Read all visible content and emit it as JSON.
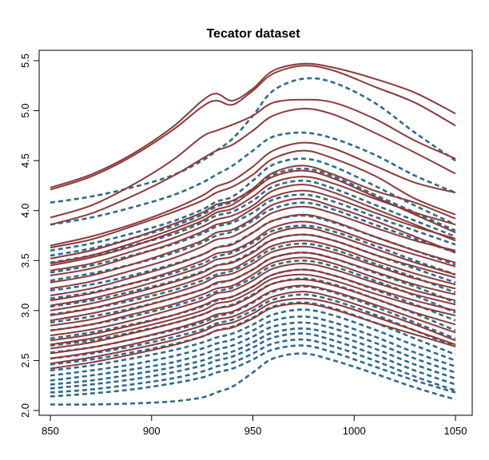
{
  "chart_data": {
    "type": "line",
    "title": "Tecator dataset",
    "xlabel": "",
    "ylabel": "",
    "xlim": [
      850,
      1050
    ],
    "ylim": [
      2.0,
      5.5
    ],
    "x_ticks": [
      850,
      900,
      950,
      1000,
      1050
    ],
    "y_ticks": [
      2.0,
      2.5,
      3.0,
      3.5,
      4.0,
      4.5,
      5.0,
      5.5
    ],
    "x_tick_labels": [
      "850",
      "900",
      "950",
      "1000",
      "1050"
    ],
    "y_tick_labels": [
      "2.0",
      "2.5",
      "3.0",
      "3.5",
      "4.0",
      "4.5",
      "5.0",
      "5.5"
    ],
    "grid": false,
    "colors": {
      "solid": "#8b3a3a",
      "dashed": "#2e6b8e"
    },
    "x": [
      850,
      870,
      890,
      910,
      925,
      932,
      940,
      950,
      960,
      975,
      990,
      1010,
      1030,
      1050
    ],
    "series": [
      {
        "group": "solid",
        "values": [
          4.23,
          4.36,
          4.56,
          4.83,
          5.1,
          5.17,
          5.1,
          5.22,
          5.4,
          5.47,
          5.43,
          5.32,
          5.18,
          4.97
        ]
      },
      {
        "group": "solid",
        "values": [
          4.21,
          4.34,
          4.54,
          4.8,
          5.04,
          5.1,
          5.06,
          5.2,
          5.37,
          5.45,
          5.4,
          5.24,
          5.08,
          4.85
        ]
      },
      {
        "group": "solid",
        "values": [
          3.93,
          4.05,
          4.25,
          4.5,
          4.74,
          4.8,
          4.86,
          4.95,
          5.08,
          5.11,
          5.08,
          4.92,
          4.7,
          4.52
        ]
      },
      {
        "group": "solid",
        "values": [
          3.86,
          3.97,
          4.14,
          4.34,
          4.52,
          4.6,
          4.66,
          4.8,
          4.95,
          5.02,
          4.96,
          4.78,
          4.58,
          4.37
        ]
      },
      {
        "group": "solid",
        "values": [
          3.65,
          3.74,
          3.86,
          4.01,
          4.15,
          4.24,
          4.3,
          4.44,
          4.6,
          4.68,
          4.62,
          4.45,
          4.28,
          4.18
        ]
      },
      {
        "group": "solid",
        "values": [
          3.63,
          3.71,
          3.84,
          3.98,
          4.1,
          4.18,
          4.24,
          4.36,
          4.52,
          4.6,
          4.52,
          4.35,
          4.12,
          3.96
        ]
      },
      {
        "group": "solid",
        "values": [
          3.52,
          3.6,
          3.72,
          3.86,
          3.98,
          4.06,
          4.1,
          4.22,
          4.38,
          4.45,
          4.36,
          4.2,
          4.08,
          3.92
        ]
      },
      {
        "group": "solid",
        "values": [
          3.47,
          3.55,
          3.67,
          3.81,
          3.93,
          4.01,
          4.06,
          4.2,
          4.34,
          4.4,
          4.32,
          4.14,
          3.96,
          3.78
        ]
      },
      {
        "group": "solid",
        "values": [
          3.45,
          3.53,
          3.64,
          3.78,
          3.9,
          3.98,
          4.02,
          4.14,
          4.28,
          4.34,
          4.27,
          4.12,
          3.98,
          3.86
        ]
      },
      {
        "group": "solid",
        "values": [
          3.4,
          3.47,
          3.59,
          3.72,
          3.84,
          3.91,
          3.95,
          4.05,
          4.2,
          4.26,
          4.18,
          4.02,
          3.86,
          3.7
        ]
      },
      {
        "group": "solid",
        "values": [
          3.35,
          3.42,
          3.54,
          3.67,
          3.79,
          3.86,
          3.9,
          4.02,
          4.14,
          4.2,
          4.13,
          3.98,
          3.84,
          3.72
        ]
      },
      {
        "group": "solid",
        "values": [
          3.28,
          3.35,
          3.46,
          3.59,
          3.7,
          3.78,
          3.81,
          3.92,
          4.06,
          4.12,
          4.04,
          3.9,
          3.74,
          3.58
        ]
      },
      {
        "group": "solid",
        "values": [
          3.22,
          3.29,
          3.4,
          3.52,
          3.64,
          3.71,
          3.74,
          3.85,
          3.98,
          4.04,
          3.97,
          3.83,
          3.7,
          3.6
        ]
      },
      {
        "group": "solid",
        "values": [
          3.15,
          3.22,
          3.33,
          3.45,
          3.56,
          3.63,
          3.66,
          3.78,
          3.9,
          3.96,
          3.89,
          3.74,
          3.6,
          3.48
        ]
      },
      {
        "group": "solid",
        "values": [
          3.1,
          3.17,
          3.27,
          3.39,
          3.5,
          3.57,
          3.6,
          3.7,
          3.83,
          3.89,
          3.82,
          3.68,
          3.56,
          3.44
        ]
      },
      {
        "group": "solid",
        "values": [
          3.05,
          3.12,
          3.22,
          3.34,
          3.44,
          3.51,
          3.54,
          3.64,
          3.77,
          3.83,
          3.76,
          3.62,
          3.48,
          3.36
        ]
      },
      {
        "group": "solid",
        "values": [
          3.0,
          3.07,
          3.17,
          3.28,
          3.38,
          3.45,
          3.48,
          3.58,
          3.71,
          3.76,
          3.7,
          3.56,
          3.44,
          3.33
        ]
      },
      {
        "group": "solid",
        "values": [
          2.95,
          3.02,
          3.12,
          3.23,
          3.33,
          3.4,
          3.42,
          3.53,
          3.65,
          3.7,
          3.64,
          3.5,
          3.37,
          3.26
        ]
      },
      {
        "group": "solid",
        "values": [
          2.9,
          2.97,
          3.06,
          3.17,
          3.27,
          3.34,
          3.37,
          3.47,
          3.59,
          3.64,
          3.58,
          3.45,
          3.32,
          3.22
        ]
      },
      {
        "group": "solid",
        "values": [
          2.85,
          2.91,
          3.01,
          3.12,
          3.21,
          3.28,
          3.31,
          3.41,
          3.53,
          3.58,
          3.52,
          3.39,
          3.26,
          3.16
        ]
      },
      {
        "group": "solid",
        "values": [
          2.8,
          2.86,
          2.96,
          3.06,
          3.16,
          3.22,
          3.25,
          3.36,
          3.48,
          3.53,
          3.47,
          3.33,
          3.2,
          3.1
        ]
      },
      {
        "group": "solid",
        "values": [
          2.75,
          2.81,
          2.9,
          3.01,
          3.1,
          3.17,
          3.2,
          3.3,
          3.42,
          3.47,
          3.41,
          3.28,
          3.16,
          3.06
        ]
      },
      {
        "group": "solid",
        "values": [
          2.7,
          2.76,
          2.85,
          2.95,
          3.05,
          3.11,
          3.14,
          3.24,
          3.36,
          3.41,
          3.35,
          3.22,
          3.1,
          3.0
        ]
      },
      {
        "group": "solid",
        "values": [
          2.66,
          2.72,
          2.81,
          2.91,
          3.0,
          3.07,
          3.1,
          3.2,
          3.32,
          3.36,
          3.3,
          3.17,
          3.05,
          2.95
        ]
      },
      {
        "group": "solid",
        "values": [
          2.62,
          2.68,
          2.77,
          2.87,
          2.96,
          3.02,
          3.05,
          3.15,
          3.27,
          3.31,
          3.25,
          3.12,
          2.98,
          2.86
        ]
      },
      {
        "group": "solid",
        "values": [
          2.57,
          2.63,
          2.71,
          2.81,
          2.9,
          2.96,
          2.99,
          3.09,
          3.2,
          3.25,
          3.19,
          3.06,
          2.92,
          2.78
        ]
      },
      {
        "group": "solid",
        "values": [
          2.52,
          2.58,
          2.66,
          2.76,
          2.85,
          2.91,
          2.94,
          3.03,
          3.14,
          3.19,
          3.13,
          3.0,
          2.86,
          2.7
        ]
      },
      {
        "group": "solid",
        "values": [
          2.47,
          2.53,
          2.61,
          2.7,
          2.79,
          2.85,
          2.88,
          2.97,
          3.08,
          3.12,
          3.07,
          2.94,
          2.8,
          2.66
        ]
      },
      {
        "group": "solid",
        "values": [
          2.42,
          2.48,
          2.56,
          2.65,
          2.74,
          2.8,
          2.83,
          2.92,
          3.03,
          3.07,
          3.01,
          2.88,
          2.76,
          2.64
        ]
      },
      {
        "group": "dashed",
        "values": [
          4.08,
          4.14,
          4.23,
          4.35,
          4.5,
          4.6,
          4.72,
          4.95,
          5.2,
          5.32,
          5.28,
          5.08,
          4.78,
          4.5
        ]
      },
      {
        "group": "dashed",
        "values": [
          3.86,
          3.93,
          4.03,
          4.15,
          4.28,
          4.36,
          4.45,
          4.6,
          4.74,
          4.78,
          4.72,
          4.56,
          4.35,
          4.18
        ]
      },
      {
        "group": "dashed",
        "values": [
          3.6,
          3.67,
          3.77,
          3.89,
          4.01,
          4.09,
          4.14,
          4.3,
          4.46,
          4.52,
          4.44,
          4.25,
          4.05,
          3.86
        ]
      },
      {
        "group": "dashed",
        "values": [
          3.55,
          3.62,
          3.72,
          3.84,
          3.96,
          4.04,
          4.09,
          4.22,
          4.36,
          4.42,
          4.34,
          4.16,
          3.98,
          3.8
        ]
      },
      {
        "group": "dashed",
        "values": [
          3.48,
          3.55,
          3.65,
          3.76,
          3.88,
          3.95,
          3.99,
          4.1,
          4.24,
          4.3,
          4.22,
          4.06,
          3.9,
          3.74
        ]
      },
      {
        "group": "dashed",
        "values": [
          3.38,
          3.45,
          3.55,
          3.66,
          3.77,
          3.84,
          3.88,
          3.98,
          4.11,
          4.16,
          4.09,
          3.94,
          3.8,
          3.66
        ]
      },
      {
        "group": "dashed",
        "values": [
          3.3,
          3.37,
          3.46,
          3.57,
          3.68,
          3.75,
          3.79,
          3.9,
          4.02,
          4.08,
          4.01,
          3.86,
          3.72,
          3.58
        ]
      },
      {
        "group": "dashed",
        "values": [
          3.2,
          3.26,
          3.35,
          3.46,
          3.56,
          3.63,
          3.67,
          3.78,
          3.9,
          3.95,
          3.88,
          3.74,
          3.6,
          3.46
        ]
      },
      {
        "group": "dashed",
        "values": [
          3.12,
          3.18,
          3.27,
          3.37,
          3.47,
          3.54,
          3.58,
          3.68,
          3.8,
          3.85,
          3.79,
          3.65,
          3.5,
          3.36
        ]
      },
      {
        "group": "dashed",
        "values": [
          3.04,
          3.1,
          3.19,
          3.29,
          3.39,
          3.45,
          3.49,
          3.59,
          3.71,
          3.76,
          3.7,
          3.56,
          3.42,
          3.28
        ]
      },
      {
        "group": "dashed",
        "values": [
          2.96,
          3.02,
          3.1,
          3.2,
          3.3,
          3.36,
          3.4,
          3.5,
          3.62,
          3.67,
          3.61,
          3.47,
          3.33,
          3.18
        ]
      },
      {
        "group": "dashed",
        "values": [
          2.88,
          2.94,
          3.02,
          3.12,
          3.21,
          3.27,
          3.31,
          3.41,
          3.53,
          3.58,
          3.52,
          3.38,
          3.24,
          3.08
        ]
      },
      {
        "group": "dashed",
        "values": [
          2.8,
          2.86,
          2.94,
          3.04,
          3.13,
          3.19,
          3.23,
          3.33,
          3.45,
          3.5,
          3.44,
          3.3,
          3.15,
          2.98
        ]
      },
      {
        "group": "dashed",
        "values": [
          2.72,
          2.78,
          2.86,
          2.95,
          3.04,
          3.1,
          3.14,
          3.24,
          3.36,
          3.41,
          3.35,
          3.21,
          3.06,
          2.9
        ]
      },
      {
        "group": "dashed",
        "values": [
          2.65,
          2.7,
          2.78,
          2.87,
          2.96,
          3.02,
          3.06,
          3.16,
          3.27,
          3.32,
          3.26,
          3.12,
          2.97,
          2.8
        ]
      },
      {
        "group": "dashed",
        "values": [
          2.58,
          2.63,
          2.71,
          2.8,
          2.88,
          2.94,
          2.98,
          3.08,
          3.19,
          3.24,
          3.18,
          3.04,
          2.88,
          2.72
        ]
      },
      {
        "group": "dashed",
        "values": [
          2.52,
          2.57,
          2.64,
          2.73,
          2.81,
          2.87,
          2.91,
          3.0,
          3.11,
          3.16,
          3.1,
          2.96,
          2.8,
          2.64
        ]
      },
      {
        "group": "dashed",
        "values": [
          2.46,
          2.51,
          2.58,
          2.66,
          2.74,
          2.8,
          2.84,
          2.93,
          3.04,
          3.08,
          3.02,
          2.88,
          2.72,
          2.56
        ]
      },
      {
        "group": "dashed",
        "values": [
          2.4,
          2.45,
          2.52,
          2.6,
          2.68,
          2.73,
          2.77,
          2.86,
          2.96,
          3.01,
          2.95,
          2.81,
          2.65,
          2.5
        ]
      },
      {
        "group": "dashed",
        "values": [
          2.35,
          2.4,
          2.46,
          2.54,
          2.62,
          2.67,
          2.71,
          2.8,
          2.9,
          2.94,
          2.88,
          2.74,
          2.58,
          2.44
        ]
      },
      {
        "group": "dashed",
        "values": [
          2.3,
          2.35,
          2.41,
          2.48,
          2.56,
          2.61,
          2.65,
          2.74,
          2.84,
          2.88,
          2.82,
          2.68,
          2.52,
          2.38
        ]
      },
      {
        "group": "dashed",
        "values": [
          2.26,
          2.3,
          2.36,
          2.43,
          2.5,
          2.55,
          2.59,
          2.68,
          2.78,
          2.82,
          2.76,
          2.62,
          2.46,
          2.32
        ]
      },
      {
        "group": "dashed",
        "values": [
          2.22,
          2.26,
          2.31,
          2.38,
          2.45,
          2.5,
          2.54,
          2.63,
          2.73,
          2.77,
          2.7,
          2.56,
          2.4,
          2.26
        ]
      },
      {
        "group": "dashed",
        "values": [
          2.18,
          2.21,
          2.26,
          2.32,
          2.39,
          2.44,
          2.48,
          2.57,
          2.67,
          2.71,
          2.64,
          2.5,
          2.34,
          2.2
        ]
      },
      {
        "group": "dashed",
        "values": [
          2.14,
          2.17,
          2.21,
          2.27,
          2.33,
          2.38,
          2.42,
          2.51,
          2.61,
          2.65,
          2.58,
          2.44,
          2.3,
          2.18
        ]
      },
      {
        "group": "dashed",
        "values": [
          2.06,
          2.06,
          2.07,
          2.09,
          2.13,
          2.18,
          2.24,
          2.38,
          2.52,
          2.57,
          2.5,
          2.37,
          2.23,
          2.11
        ]
      }
    ]
  }
}
